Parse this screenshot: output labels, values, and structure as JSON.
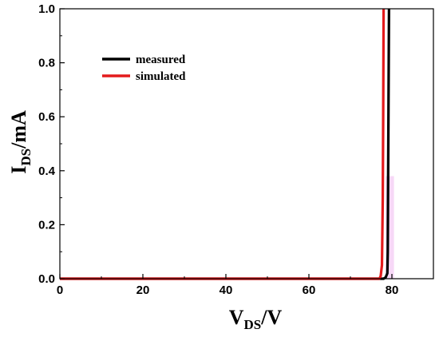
{
  "chart_data": {
    "type": "line",
    "xlabel": {
      "main": "V",
      "sub": "DS",
      "suffix": "/V"
    },
    "ylabel": {
      "main": "I",
      "sub": "DS",
      "suffix": "/mA"
    },
    "xlim": [
      0,
      90
    ],
    "ylim": [
      0,
      1.0
    ],
    "xticks": [
      0,
      20,
      40,
      60,
      80
    ],
    "yticks": [
      0.0,
      0.2,
      0.4,
      0.6,
      0.8,
      1.0
    ],
    "xtick_labels": [
      "0",
      "20",
      "40",
      "60",
      "80"
    ],
    "ytick_labels": [
      "0.0",
      "0.2",
      "0.4",
      "0.6",
      "0.8",
      "1.0"
    ],
    "legend_position": "top-left",
    "grid": false,
    "series": [
      {
        "name": "measured",
        "color": "#000000",
        "points": [
          [
            0,
            0
          ],
          [
            70,
            0
          ],
          [
            78,
            0
          ],
          [
            78.5,
            0.005
          ],
          [
            78.9,
            0.02
          ],
          [
            79.0,
            0.1
          ],
          [
            79.1,
            0.4
          ],
          [
            79.2,
            0.7
          ],
          [
            79.3,
            1.0
          ]
        ]
      },
      {
        "name": "simulated",
        "color": "#e41a1c",
        "points": [
          [
            0,
            0
          ],
          [
            70,
            0
          ],
          [
            77,
            0
          ],
          [
            77.3,
            0.01
          ],
          [
            77.6,
            0.05
          ],
          [
            77.8,
            0.3
          ],
          [
            77.9,
            0.6
          ],
          [
            78.0,
            1.0
          ]
        ]
      }
    ],
    "shaded_region": {
      "x": [
        78.5,
        80.5
      ],
      "y": [
        0,
        0.38
      ],
      "color": "#f3c8f3"
    }
  }
}
